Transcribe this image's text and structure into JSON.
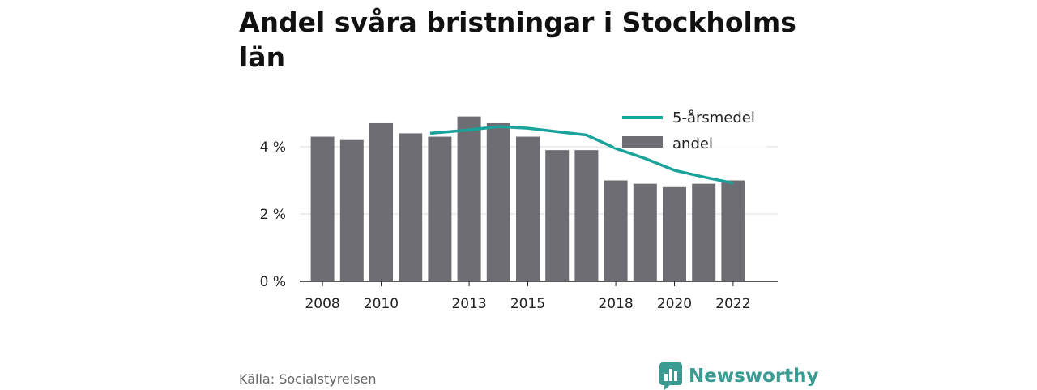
{
  "title": "Andel svåra bristningar i Stockholms län",
  "source": "Källa: Socialstyrelsen",
  "brand": {
    "name": "Newsworthy",
    "icon": "bar-chart-speech-icon",
    "color": "#3a9b93"
  },
  "colors": {
    "bar": "#6e6d73",
    "line": "#1aa39a",
    "grid": "#dddddd",
    "axis": "#222222"
  },
  "chart_data": {
    "type": "bar",
    "categories": [
      2008,
      2009,
      2010,
      2011,
      2012,
      2013,
      2014,
      2015,
      2016,
      2017,
      2018,
      2019,
      2020,
      2021,
      2022
    ],
    "x_tick_labels": [
      "2008",
      "2010",
      "2013",
      "2015",
      "2018",
      "2020",
      "2022"
    ],
    "y_tick_labels": [
      "0 %",
      "2 %",
      "4 %"
    ],
    "y_ticks": [
      0,
      2,
      4
    ],
    "ylim": [
      0,
      5.2
    ],
    "grid": true,
    "legend_position": "top-right",
    "series": [
      {
        "name": "andel",
        "type": "bar",
        "values": [
          4.3,
          4.2,
          4.7,
          4.4,
          4.3,
          4.9,
          4.7,
          4.3,
          3.9,
          3.9,
          3.0,
          2.9,
          2.8,
          2.9,
          3.0
        ]
      },
      {
        "name": "5-årsmedel",
        "type": "line",
        "values": [
          null,
          null,
          null,
          null,
          4.4,
          4.5,
          4.6,
          4.55,
          4.45,
          4.35,
          3.95,
          3.65,
          3.3,
          3.1,
          2.92
        ]
      }
    ]
  }
}
